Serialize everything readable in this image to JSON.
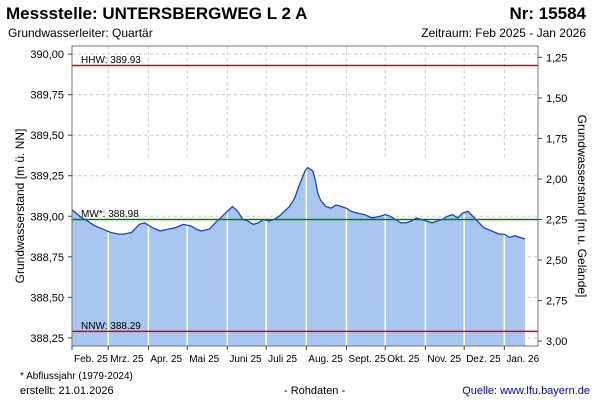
{
  "header": {
    "title": "Messstelle: UNTERSBERGWEG L 2 A",
    "number": "Nr: 15584",
    "subtitle": "Grundwasserleiter: Quartär",
    "period": "Zeitraum: Feb 2025 - Jan 2026"
  },
  "footer": {
    "footnote": "* Abflussjahr (1979-2024)",
    "created": "erstellt:  21.01.2026",
    "status": "- Rohdaten -",
    "source": "Quelle:  www.lfu.bayern.de"
  },
  "colors": {
    "fill": "#a7c7f0",
    "line": "#1f3fd0",
    "hhw": "#e00000",
    "nnw": "#e00000",
    "mw": "#008000",
    "grid": "#cccccc",
    "month_grid": "#ffffff"
  },
  "chart_data": {
    "type": "area",
    "ylabel": "Grundwasserstand [m ü. NN]",
    "y2label": "Grundwasserstand [m u. Gelände]",
    "ylim": [
      388.2,
      390.05
    ],
    "yticks": [
      388.25,
      388.5,
      388.75,
      389.0,
      389.25,
      389.5,
      389.75,
      390.0
    ],
    "ytick_labels": [
      "388,25",
      "388,50",
      "388,75",
      "389,00",
      "389,25",
      "389,50",
      "389,75",
      "390,00"
    ],
    "y2ticks": [
      1.25,
      1.5,
      1.75,
      2.0,
      2.25,
      2.5,
      2.75,
      3.0
    ],
    "y2tick_labels": [
      "1,25",
      "1,50",
      "1,75",
      "2,00",
      "2,25",
      "2,50",
      "2,75",
      "3,00"
    ],
    "xlim": [
      0,
      360
    ],
    "month_ticks": [
      0,
      28,
      59,
      89,
      120,
      150,
      181,
      212,
      242,
      273,
      303,
      334
    ],
    "month_labels": [
      "Feb. 25",
      "Mrz. 25",
      "Apr. 25",
      "Mai 25",
      "Juni 25",
      "Juli 25",
      "Aug. 25",
      "Sept. 25",
      "Okt. 25",
      "Nov. 25",
      "Dez. 25",
      "Jan. 26"
    ],
    "reference_lines": [
      {
        "key": "hhw",
        "label": "HHW: 389.93",
        "value": 389.93
      },
      {
        "key": "mw",
        "label": "MW*: 388.98",
        "value": 388.98
      },
      {
        "key": "nnw",
        "label": "NNW: 388.29",
        "value": 388.29
      }
    ],
    "series": [
      {
        "x": [
          0,
          6,
          12,
          18,
          24,
          30,
          36,
          40,
          46,
          52,
          56,
          62,
          68,
          74,
          80,
          86,
          92,
          96,
          100,
          106,
          112,
          116,
          120,
          124,
          128,
          132,
          136,
          140,
          144,
          148,
          152,
          156,
          160,
          164,
          168,
          172,
          176,
          180,
          182,
          184,
          186,
          188,
          190,
          192,
          194,
          196,
          200,
          204,
          208,
          212,
          216,
          220,
          226,
          232,
          238,
          242,
          246,
          250,
          254,
          258,
          262,
          266,
          270,
          274,
          278,
          282,
          286,
          290,
          294,
          298,
          302,
          306,
          312,
          318,
          324,
          330,
          334,
          338,
          342,
          346,
          350
        ],
        "y": [
          389.04,
          389.0,
          388.97,
          388.94,
          388.92,
          388.9,
          388.89,
          388.89,
          388.9,
          388.95,
          388.96,
          388.93,
          388.91,
          388.92,
          388.93,
          388.95,
          388.94,
          388.92,
          388.91,
          388.92,
          388.97,
          389.0,
          389.03,
          389.06,
          389.03,
          388.98,
          388.97,
          388.95,
          388.96,
          388.98,
          388.97,
          388.98,
          389.0,
          389.03,
          389.06,
          389.11,
          389.2,
          389.28,
          389.3,
          389.29,
          389.28,
          389.22,
          389.14,
          389.1,
          389.08,
          389.06,
          389.05,
          389.07,
          389.06,
          389.05,
          389.03,
          389.02,
          389.01,
          388.99,
          389.0,
          389.01,
          389.0,
          388.98,
          388.96,
          388.96,
          388.97,
          388.99,
          388.98,
          388.97,
          388.96,
          388.97,
          388.98,
          389.0,
          389.01,
          388.99,
          389.02,
          389.03,
          388.98,
          388.93,
          388.91,
          388.89,
          388.89,
          388.87,
          388.88,
          388.87,
          388.86
        ]
      }
    ]
  }
}
